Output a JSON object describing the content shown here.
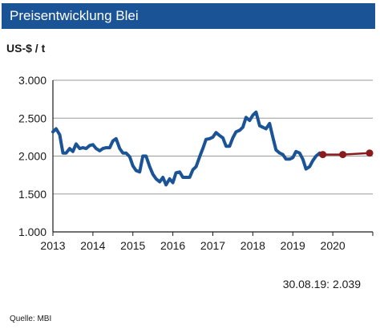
{
  "title": "Preisentwicklung Blei",
  "unit": "US-$ / t",
  "footer_value": "30.08.19: 2.039",
  "source": "Quelle: MBI",
  "colors": {
    "title_bg": "#1a5496",
    "actual": "#1a5496",
    "forecast": "#8b1a1a"
  },
  "chart_data": {
    "type": "line",
    "ylim": [
      1000,
      3000
    ],
    "xlim": [
      2013,
      2021
    ],
    "y_ticks": [
      1000,
      1500,
      2000,
      2500,
      3000
    ],
    "y_tick_labels": [
      "1.000",
      "1.500",
      "2.000",
      "2.500",
      "3.000"
    ],
    "x_tick_labels": [
      "2013",
      "2014",
      "2015",
      "2016",
      "2017",
      "2018",
      "2019",
      "2020"
    ],
    "grid": true,
    "series": [
      {
        "name": "",
        "style": "line",
        "x": [
          2013.0,
          2013.08,
          2013.17,
          2013.25,
          2013.33,
          2013.42,
          2013.5,
          2013.58,
          2013.67,
          2013.75,
          2013.83,
          2013.92,
          2014.0,
          2014.08,
          2014.17,
          2014.25,
          2014.33,
          2014.42,
          2014.5,
          2014.58,
          2014.67,
          2014.75,
          2014.83,
          2014.92,
          2015.0,
          2015.08,
          2015.17,
          2015.25,
          2015.33,
          2015.42,
          2015.5,
          2015.58,
          2015.67,
          2015.75,
          2015.83,
          2015.92,
          2016.0,
          2016.08,
          2016.17,
          2016.25,
          2016.33,
          2016.42,
          2016.5,
          2016.58,
          2016.67,
          2016.75,
          2016.83,
          2016.92,
          2017.0,
          2017.08,
          2017.17,
          2017.25,
          2017.33,
          2017.42,
          2017.5,
          2017.58,
          2017.67,
          2017.75,
          2017.83,
          2017.92,
          2018.0,
          2018.08,
          2018.17,
          2018.25,
          2018.33,
          2018.42,
          2018.5,
          2018.58,
          2018.67,
          2018.75,
          2018.83,
          2018.92,
          2019.0,
          2019.08,
          2019.17,
          2019.25,
          2019.33,
          2019.42,
          2019.5,
          2019.58,
          2019.67
        ],
        "y": [
          2320,
          2360,
          2280,
          2040,
          2040,
          2100,
          2060,
          2160,
          2100,
          2110,
          2100,
          2140,
          2150,
          2100,
          2070,
          2100,
          2110,
          2110,
          2200,
          2230,
          2100,
          2040,
          2040,
          1990,
          1870,
          1810,
          1790,
          2000,
          2000,
          1860,
          1760,
          1700,
          1660,
          1720,
          1620,
          1700,
          1650,
          1780,
          1790,
          1720,
          1720,
          1720,
          1820,
          1860,
          1990,
          2100,
          2220,
          2230,
          2250,
          2310,
          2270,
          2240,
          2130,
          2130,
          2240,
          2320,
          2340,
          2380,
          2510,
          2470,
          2540,
          2580,
          2400,
          2380,
          2360,
          2430,
          2250,
          2080,
          2040,
          2020,
          1960,
          1960,
          1980,
          2060,
          2040,
          1960,
          1830,
          1860,
          1940,
          2000,
          2039
        ]
      },
      {
        "name": "",
        "style": "markers",
        "x": [
          2019.75,
          2020.25,
          2020.92
        ],
        "y": [
          2020,
          2020,
          2040
        ]
      }
    ]
  }
}
